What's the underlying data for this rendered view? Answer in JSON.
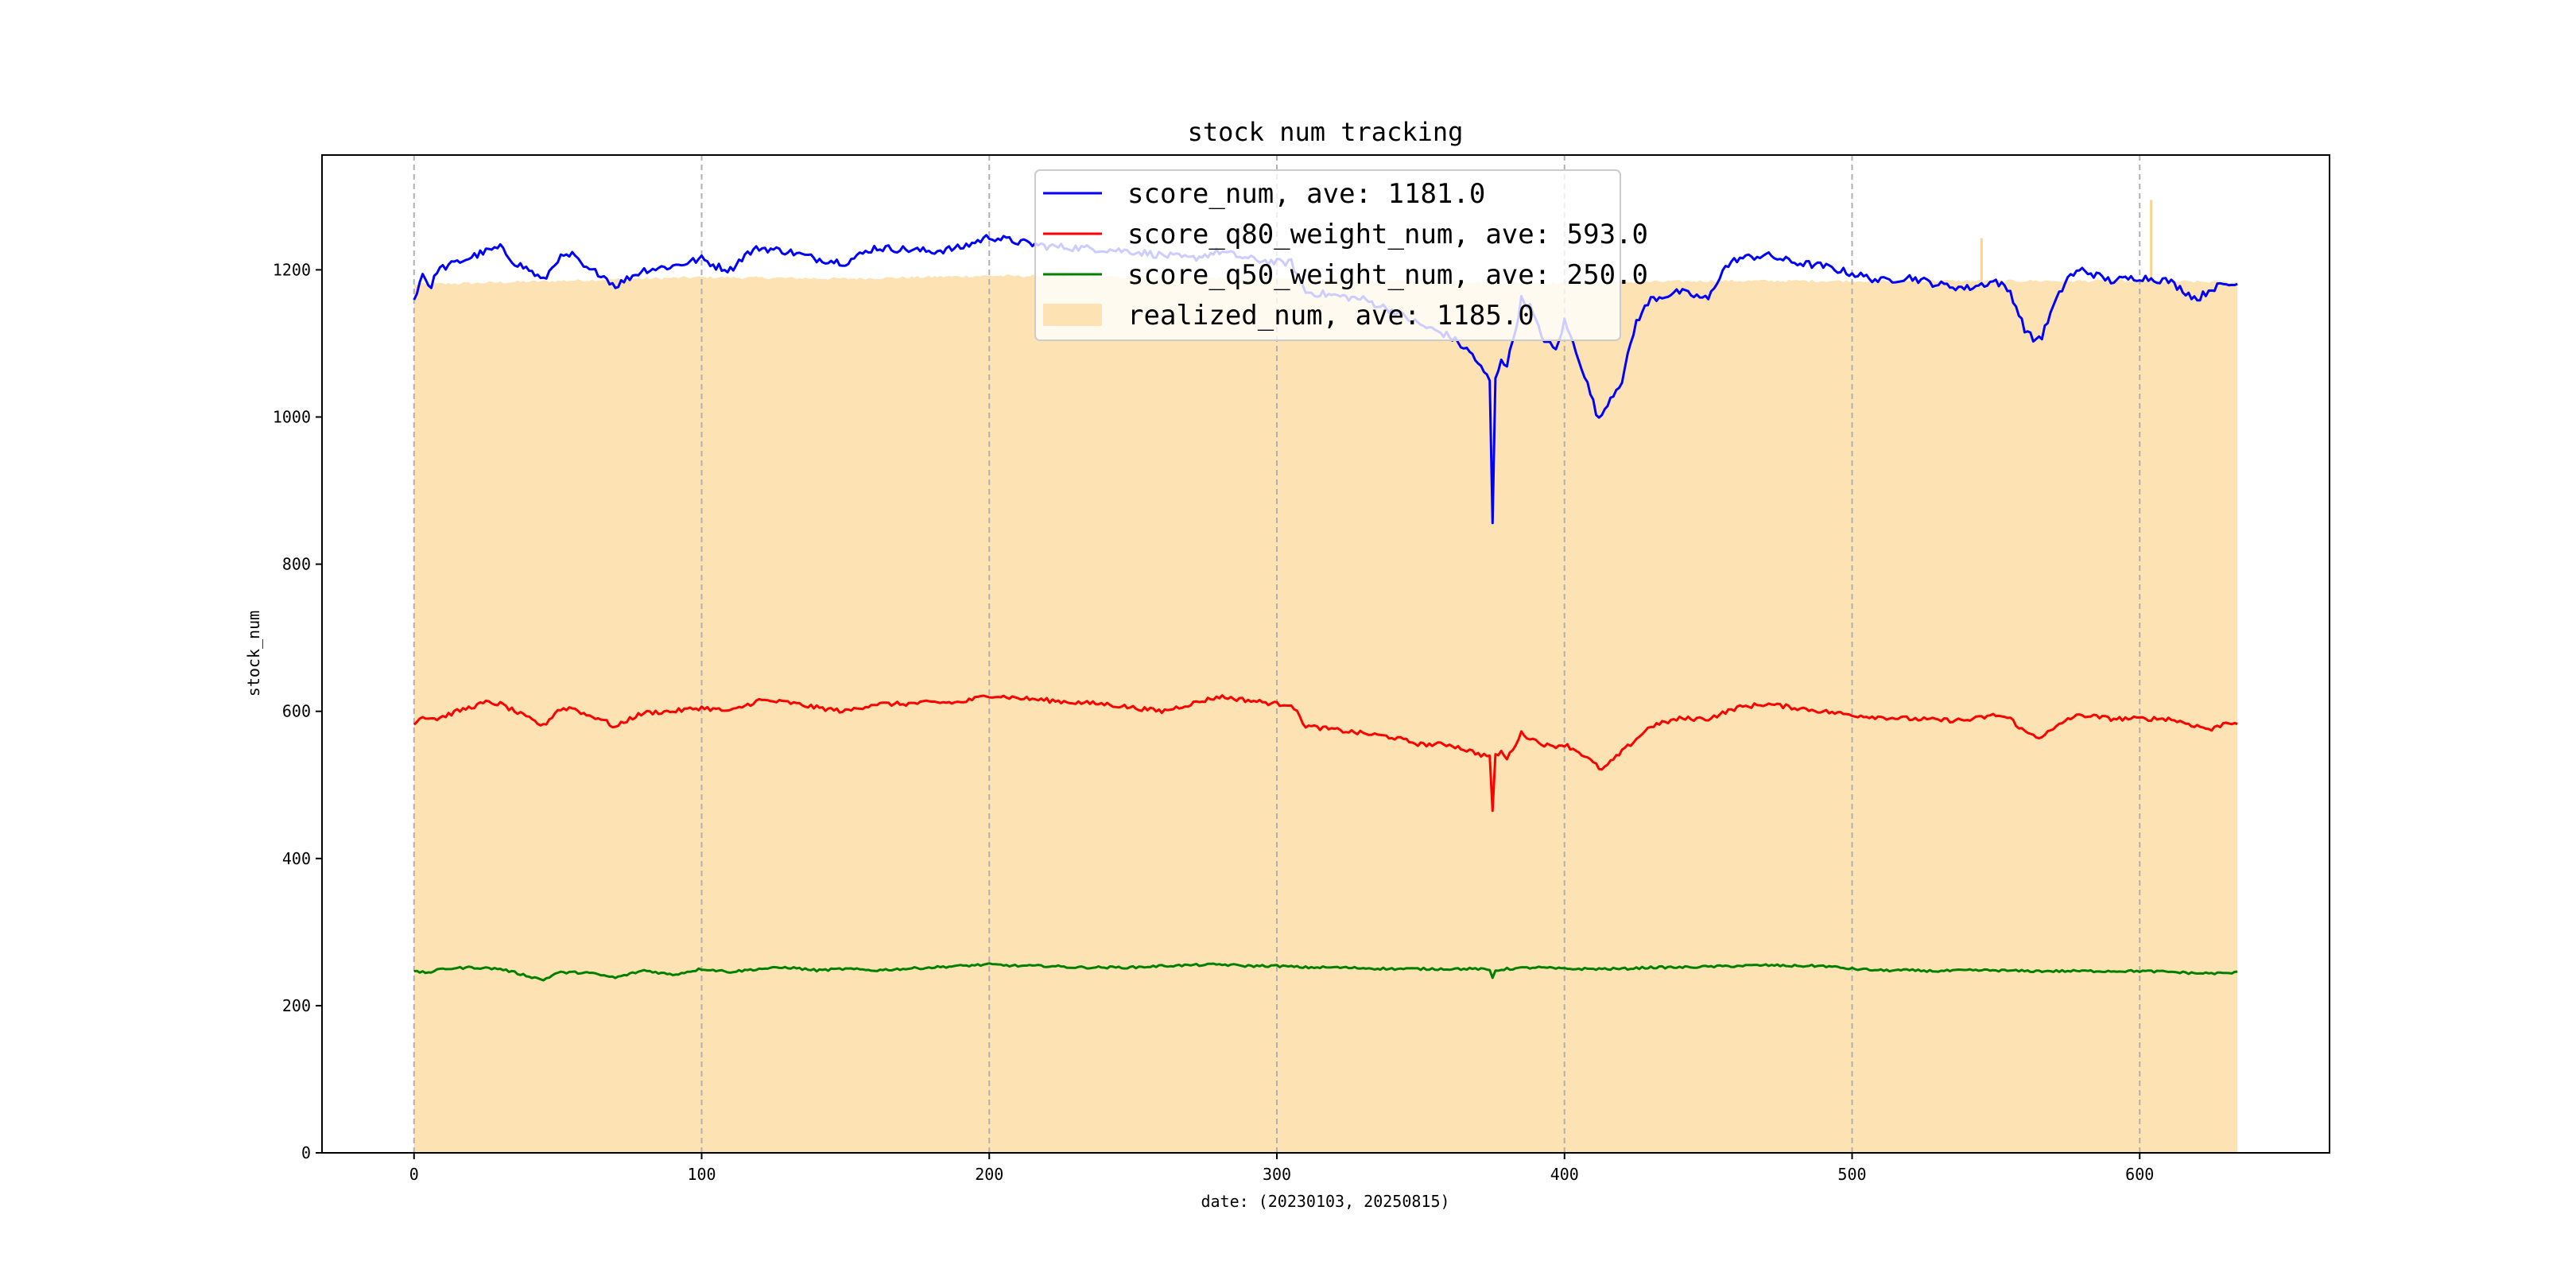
{
  "chart_data": {
    "type": "line",
    "title": "stock num tracking",
    "xlabel": "date: (20230103, 20250815)",
    "ylabel": "stock_num",
    "xlim": [
      -32,
      666
    ],
    "ylim": [
      0,
      1356
    ],
    "xticks": [
      0,
      100,
      200,
      300,
      400,
      500,
      600
    ],
    "yticks": [
      0,
      200,
      400,
      600,
      800,
      1000,
      1200
    ],
    "x_grid": true,
    "y_grid": false,
    "legend_placement": "top-center",
    "n_points": 635,
    "series": [
      {
        "name": "score_num, ave: 1181.0",
        "kind": "line",
        "color": "#0000ff",
        "knots": [
          [
            0,
            1160
          ],
          [
            3,
            1195
          ],
          [
            6,
            1175
          ],
          [
            8,
            1200
          ],
          [
            15,
            1210
          ],
          [
            25,
            1225
          ],
          [
            30,
            1230
          ],
          [
            35,
            1210
          ],
          [
            40,
            1200
          ],
          [
            45,
            1185
          ],
          [
            50,
            1215
          ],
          [
            55,
            1220
          ],
          [
            60,
            1200
          ],
          [
            65,
            1195
          ],
          [
            70,
            1178
          ],
          [
            75,
            1190
          ],
          [
            80,
            1200
          ],
          [
            90,
            1205
          ],
          [
            100,
            1215
          ],
          [
            105,
            1205
          ],
          [
            110,
            1200
          ],
          [
            115,
            1220
          ],
          [
            120,
            1230
          ],
          [
            130,
            1225
          ],
          [
            140,
            1215
          ],
          [
            150,
            1210
          ],
          [
            160,
            1230
          ],
          [
            170,
            1228
          ],
          [
            180,
            1225
          ],
          [
            190,
            1230
          ],
          [
            200,
            1245
          ],
          [
            210,
            1238
          ],
          [
            220,
            1232
          ],
          [
            230,
            1230
          ],
          [
            240,
            1228
          ],
          [
            250,
            1225
          ],
          [
            260,
            1220
          ],
          [
            270,
            1215
          ],
          [
            280,
            1225
          ],
          [
            290,
            1215
          ],
          [
            300,
            1210
          ],
          [
            305,
            1210
          ],
          [
            310,
            1170
          ],
          [
            320,
            1165
          ],
          [
            330,
            1160
          ],
          [
            340,
            1145
          ],
          [
            350,
            1125
          ],
          [
            360,
            1110
          ],
          [
            368,
            1085
          ],
          [
            372,
            1060
          ],
          [
            374,
            1050
          ],
          [
            375,
            855
          ],
          [
            376,
            1050
          ],
          [
            378,
            1080
          ],
          [
            380,
            1070
          ],
          [
            383,
            1120
          ],
          [
            385,
            1160
          ],
          [
            388,
            1150
          ],
          [
            392,
            1110
          ],
          [
            397,
            1090
          ],
          [
            400,
            1130
          ],
          [
            405,
            1080
          ],
          [
            410,
            1020
          ],
          [
            412,
            995
          ],
          [
            415,
            1020
          ],
          [
            420,
            1050
          ],
          [
            425,
            1130
          ],
          [
            430,
            1160
          ],
          [
            440,
            1170
          ],
          [
            450,
            1160
          ],
          [
            455,
            1200
          ],
          [
            460,
            1215
          ],
          [
            470,
            1220
          ],
          [
            480,
            1210
          ],
          [
            490,
            1205
          ],
          [
            500,
            1195
          ],
          [
            510,
            1185
          ],
          [
            520,
            1190
          ],
          [
            530,
            1180
          ],
          [
            540,
            1175
          ],
          [
            550,
            1185
          ],
          [
            555,
            1170
          ],
          [
            560,
            1120
          ],
          [
            563,
            1105
          ],
          [
            566,
            1110
          ],
          [
            570,
            1150
          ],
          [
            575,
            1190
          ],
          [
            580,
            1200
          ],
          [
            590,
            1185
          ],
          [
            600,
            1190
          ],
          [
            610,
            1185
          ],
          [
            620,
            1160
          ],
          [
            625,
            1175
          ],
          [
            630,
            1180
          ],
          [
            634,
            1180
          ]
        ]
      },
      {
        "name": "score_q80_weight_num, ave: 593.0",
        "kind": "line",
        "color": "#ff0000",
        "knots": [
          [
            0,
            585
          ],
          [
            3,
            593
          ],
          [
            8,
            590
          ],
          [
            15,
            600
          ],
          [
            25,
            612
          ],
          [
            30,
            610
          ],
          [
            35,
            600
          ],
          [
            40,
            590
          ],
          [
            45,
            580
          ],
          [
            50,
            602
          ],
          [
            55,
            605
          ],
          [
            60,
            595
          ],
          [
            65,
            590
          ],
          [
            70,
            578
          ],
          [
            75,
            590
          ],
          [
            80,
            598
          ],
          [
            90,
            600
          ],
          [
            100,
            605
          ],
          [
            110,
            600
          ],
          [
            120,
            615
          ],
          [
            130,
            612
          ],
          [
            140,
            605
          ],
          [
            150,
            600
          ],
          [
            160,
            610
          ],
          [
            170,
            610
          ],
          [
            180,
            612
          ],
          [
            190,
            612
          ],
          [
            200,
            622
          ],
          [
            210,
            618
          ],
          [
            220,
            615
          ],
          [
            230,
            612
          ],
          [
            240,
            610
          ],
          [
            250,
            605
          ],
          [
            260,
            600
          ],
          [
            270,
            610
          ],
          [
            280,
            620
          ],
          [
            290,
            615
          ],
          [
            300,
            610
          ],
          [
            305,
            610
          ],
          [
            310,
            580
          ],
          [
            320,
            575
          ],
          [
            330,
            570
          ],
          [
            340,
            565
          ],
          [
            350,
            555
          ],
          [
            360,
            555
          ],
          [
            368,
            545
          ],
          [
            372,
            540
          ],
          [
            374,
            540
          ],
          [
            375,
            462
          ],
          [
            376,
            540
          ],
          [
            378,
            545
          ],
          [
            380,
            535
          ],
          [
            385,
            570
          ],
          [
            390,
            560
          ],
          [
            395,
            552
          ],
          [
            400,
            555
          ],
          [
            405,
            545
          ],
          [
            410,
            530
          ],
          [
            413,
            520
          ],
          [
            420,
            545
          ],
          [
            430,
            580
          ],
          [
            440,
            590
          ],
          [
            450,
            590
          ],
          [
            460,
            605
          ],
          [
            470,
            610
          ],
          [
            480,
            605
          ],
          [
            490,
            600
          ],
          [
            500,
            595
          ],
          [
            510,
            592
          ],
          [
            520,
            590
          ],
          [
            530,
            588
          ],
          [
            540,
            588
          ],
          [
            550,
            595
          ],
          [
            555,
            590
          ],
          [
            560,
            572
          ],
          [
            565,
            565
          ],
          [
            570,
            575
          ],
          [
            575,
            590
          ],
          [
            580,
            595
          ],
          [
            590,
            590
          ],
          [
            600,
            590
          ],
          [
            610,
            590
          ],
          [
            620,
            580
          ],
          [
            625,
            575
          ],
          [
            630,
            585
          ],
          [
            634,
            585
          ]
        ]
      },
      {
        "name": "score_q50_weight_num, ave: 250.0",
        "kind": "line",
        "color": "#008000",
        "knots": [
          [
            0,
            246
          ],
          [
            5,
            245
          ],
          [
            10,
            250
          ],
          [
            20,
            252
          ],
          [
            30,
            250
          ],
          [
            40,
            240
          ],
          [
            45,
            235
          ],
          [
            50,
            245
          ],
          [
            60,
            245
          ],
          [
            70,
            238
          ],
          [
            80,
            248
          ],
          [
            90,
            242
          ],
          [
            100,
            250
          ],
          [
            110,
            246
          ],
          [
            120,
            250
          ],
          [
            130,
            252
          ],
          [
            140,
            248
          ],
          [
            150,
            250
          ],
          [
            160,
            248
          ],
          [
            170,
            250
          ],
          [
            180,
            252
          ],
          [
            190,
            254
          ],
          [
            200,
            256
          ],
          [
            210,
            254
          ],
          [
            220,
            254
          ],
          [
            230,
            252
          ],
          [
            240,
            252
          ],
          [
            250,
            252
          ],
          [
            260,
            254
          ],
          [
            270,
            255
          ],
          [
            280,
            256
          ],
          [
            290,
            254
          ],
          [
            300,
            254
          ],
          [
            310,
            252
          ],
          [
            320,
            252
          ],
          [
            330,
            251
          ],
          [
            340,
            250
          ],
          [
            350,
            250
          ],
          [
            360,
            250
          ],
          [
            370,
            250
          ],
          [
            374,
            248
          ],
          [
            375,
            238
          ],
          [
            376,
            248
          ],
          [
            380,
            250
          ],
          [
            390,
            252
          ],
          [
            400,
            250
          ],
          [
            410,
            250
          ],
          [
            420,
            250
          ],
          [
            430,
            252
          ],
          [
            440,
            252
          ],
          [
            450,
            253
          ],
          [
            460,
            254
          ],
          [
            470,
            255
          ],
          [
            480,
            254
          ],
          [
            490,
            254
          ],
          [
            500,
            250
          ],
          [
            510,
            248
          ],
          [
            520,
            248
          ],
          [
            530,
            247
          ],
          [
            540,
            248
          ],
          [
            550,
            248
          ],
          [
            560,
            247
          ],
          [
            570,
            247
          ],
          [
            580,
            247
          ],
          [
            590,
            247
          ],
          [
            600,
            247
          ],
          [
            610,
            246
          ],
          [
            620,
            244
          ],
          [
            630,
            244
          ],
          [
            634,
            245
          ]
        ]
      },
      {
        "name": "realized_num, ave: 1185.0",
        "kind": "area",
        "color": "#fde3b4",
        "knots": [
          [
            0,
            1180
          ],
          [
            50,
            1185
          ],
          [
            100,
            1190
          ],
          [
            150,
            1188
          ],
          [
            200,
            1192
          ],
          [
            250,
            1190
          ],
          [
            300,
            1188
          ],
          [
            350,
            1185
          ],
          [
            400,
            1182
          ],
          [
            450,
            1185
          ],
          [
            500,
            1185
          ],
          [
            550,
            1185
          ],
          [
            600,
            1185
          ],
          [
            634,
            1183
          ]
        ],
        "spikes": [
          [
            545,
            1243
          ],
          [
            604,
            1295
          ]
        ]
      }
    ]
  }
}
